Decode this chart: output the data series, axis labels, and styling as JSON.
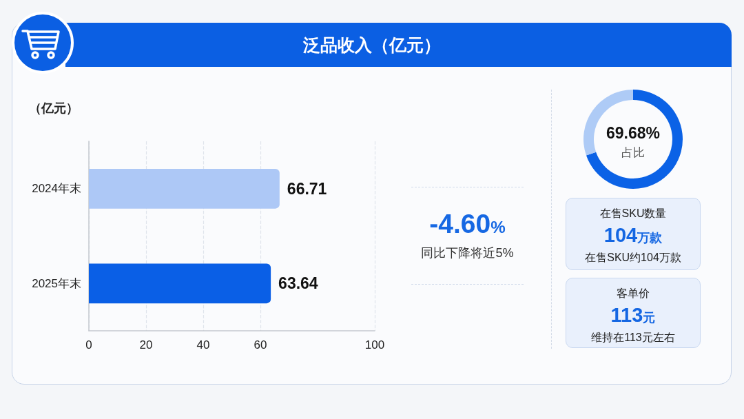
{
  "chart_data": [
    {
      "type": "bar",
      "orientation": "horizontal",
      "title": "泛品收入（亿元）",
      "xlabel": "（亿元）",
      "categories": [
        "2024年末",
        "2025年末"
      ],
      "values": [
        66.71,
        63.64
      ],
      "colors": [
        "#adc8f6",
        "#0a5fe6"
      ],
      "xlim": [
        0,
        100
      ],
      "xticks": [
        0,
        20,
        40,
        60,
        100
      ],
      "grid": "x",
      "data_labels": true
    },
    {
      "type": "other",
      "annotations": [
        "-4.60%",
        "同比下降将近5%"
      ]
    },
    {
      "type": "donut",
      "categories": [
        null,
        null
      ],
      "values": [
        69.68,
        30.32
      ],
      "colors": [
        "#0b62e6",
        "#aecbf6"
      ],
      "value_labels": [
        "69.68%",
        null
      ],
      "annotations": [
        "占比"
      ]
    },
    {
      "type": "other",
      "title": "在售SKU数量",
      "annotations": [
        "104万款",
        "在售SKU约104万款"
      ]
    },
    {
      "type": "other",
      "title": "客单价",
      "annotations": [
        "113元",
        "维持在113元左右"
      ]
    }
  ]
}
